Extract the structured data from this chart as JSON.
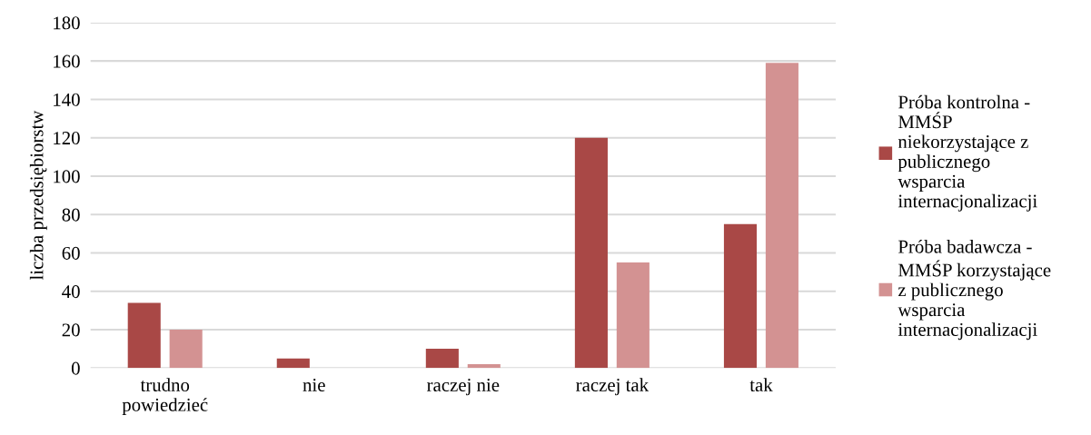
{
  "chart_data": {
    "type": "bar",
    "ylabel": "liczba przedsiębiorstw",
    "categories": [
      "trudno powiedzieć",
      "nie",
      "raczej nie",
      "raczej tak",
      "tak"
    ],
    "series": [
      {
        "name": "Próba kontrolna - MMŚP niekorzystające z publicznego wsparcia internacjonalizacji",
        "color": "#a94846",
        "values": [
          34,
          5,
          10,
          120,
          75
        ]
      },
      {
        "name": "Próba badawcza - MMŚP korzystające z publicznego wsparcia internacjonalizacji",
        "color": "#d39292",
        "values": [
          20,
          null,
          2,
          55,
          159
        ]
      }
    ],
    "ylim": [
      0,
      180
    ],
    "yticks": [
      0,
      20,
      40,
      60,
      80,
      100,
      120,
      140,
      160,
      180
    ],
    "grid": "y",
    "legend": "right"
  }
}
